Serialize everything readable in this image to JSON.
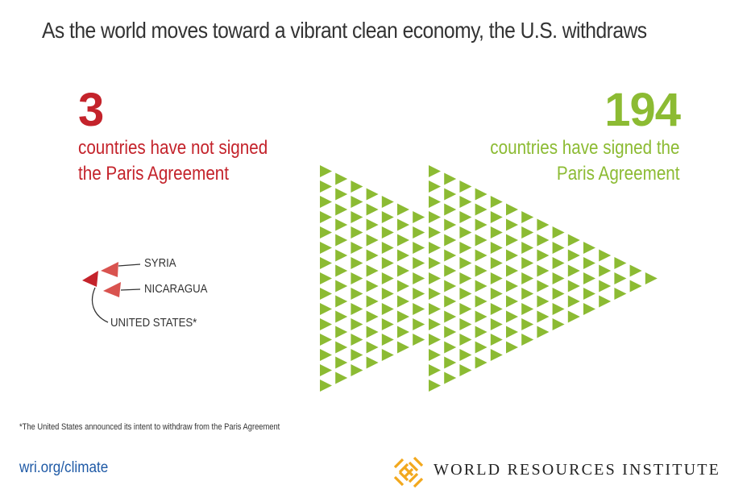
{
  "title": "As the world moves toward a vibrant clean economy, the U.S. withdraws",
  "not_signed": {
    "count": "3",
    "line1": "countries have not signed",
    "line2": "the Paris Agreement",
    "color": "#c4232b"
  },
  "signed": {
    "count": "194",
    "line1": "countries have signed the",
    "line2": "Paris Agreement",
    "color": "#8cbb33"
  },
  "countries": {
    "syria": "SYRIA",
    "nicaragua": "NICARAGUA",
    "united_states": "UNITED STATES*"
  },
  "footnote": "*The United States announced its intent to withdraw from the Paris Agreement",
  "url": "wri.org/climate",
  "organization": "WORLD RESOURCES INSTITUTE",
  "icons": {
    "logo": "wri-logo-icon",
    "signed_marker": "green-triangle-icon",
    "not_signed_marker": "red-triangle-icon"
  },
  "colors": {
    "text": "#333333",
    "red": "#c4232b",
    "red_light": "#d9534f",
    "green": "#8cbb33",
    "link": "#1f5aa6",
    "logo": "#f2a81d"
  }
}
